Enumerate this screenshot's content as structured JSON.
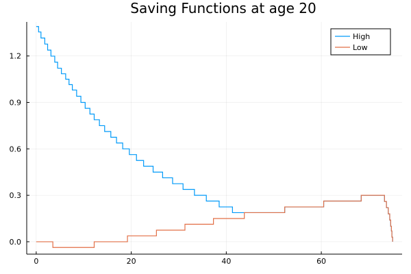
{
  "chart_data": {
    "type": "line",
    "title": "Saving Functions at age 20",
    "xlabel": "",
    "ylabel": "",
    "xlim": [
      -2,
      77
    ],
    "ylim": [
      -0.08,
      1.42
    ],
    "xticks": [
      0,
      20,
      40,
      60
    ],
    "xtick_labels": [
      "0",
      "20",
      "40",
      "60"
    ],
    "yticks": [
      0.0,
      0.3,
      0.6,
      0.9,
      1.2
    ],
    "ytick_labels": [
      "0.0",
      "0.3",
      "0.6",
      "0.9",
      "1.2"
    ],
    "grid": true,
    "legend_position": "top-right",
    "step": true,
    "series": [
      {
        "name": "High",
        "color": "#009af9",
        "x": [
          0,
          0.5,
          1,
          1.8,
          2.4,
          3.1,
          3.9,
          4.5,
          5.3,
          6.2,
          6.9,
          7.6,
          8.5,
          9.4,
          10.3,
          11.3,
          12.2,
          13.3,
          14.4,
          15.7,
          16.9,
          18.2,
          19.6,
          21.1,
          22.6,
          24.6,
          26.6,
          28.7,
          30.9,
          33.3,
          35.8,
          38.5,
          41.3,
          44.3,
          46.2,
          47.3,
          52.3,
          60.5,
          68.4,
          72.8,
          73.3,
          73.7,
          74.1,
          74.4,
          74.6,
          74.75,
          74.85,
          75
        ],
        "y": [
          1.39,
          1.355,
          1.316,
          1.277,
          1.238,
          1.199,
          1.16,
          1.121,
          1.085,
          1.05,
          1.015,
          0.98,
          0.94,
          0.9,
          0.862,
          0.825,
          0.788,
          0.75,
          0.712,
          0.675,
          0.638,
          0.6,
          0.563,
          0.525,
          0.488,
          0.45,
          0.413,
          0.375,
          0.338,
          0.3,
          0.263,
          0.225,
          0.188,
          0.188,
          0.188,
          0.188,
          0.225,
          0.263,
          0.3,
          0.3,
          0.26,
          0.22,
          0.18,
          0.14,
          0.1,
          0.07,
          0.03,
          0.0
        ]
      },
      {
        "name": "Low",
        "color": "#e26f46",
        "x": [
          0,
          3.5,
          12.2,
          19.2,
          25.3,
          31.3,
          37.3,
          43.8,
          52.3,
          60.5,
          68.4,
          72.8,
          73.3,
          73.7,
          74.1,
          74.4,
          74.6,
          74.75,
          74.85,
          75
        ],
        "y": [
          0.0,
          -0.037,
          0.0,
          0.038,
          0.075,
          0.113,
          0.15,
          0.188,
          0.225,
          0.263,
          0.3,
          0.3,
          0.26,
          0.22,
          0.18,
          0.14,
          0.1,
          0.07,
          0.03,
          0.0
        ]
      }
    ]
  }
}
